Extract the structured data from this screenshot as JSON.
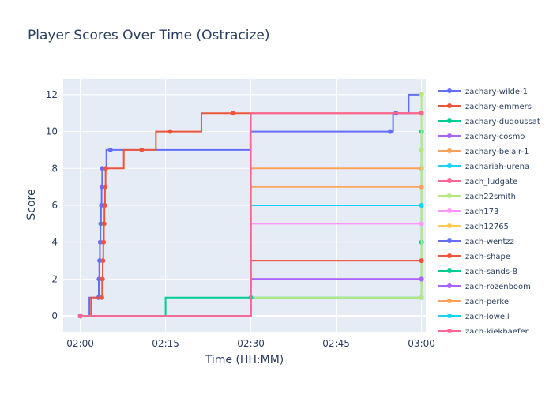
{
  "chart_data": {
    "type": "line",
    "title": "Player Scores Over Time (Ostracize)",
    "xlabel": "Time (HH:MM)",
    "ylabel": "Score",
    "xlim": [
      "01:57:00",
      "03:00:45"
    ],
    "ylim": [
      -0.85,
      12.85
    ],
    "x_ticks": [
      {
        "value": "02:00:00",
        "label": "02:00"
      },
      {
        "value": "02:15:00",
        "label": "02:15"
      },
      {
        "value": "02:30:00",
        "label": "02:30"
      },
      {
        "value": "02:45:00",
        "label": "02:45"
      },
      {
        "value": "03:00:00",
        "label": "03:00"
      }
    ],
    "y_ticks": [
      0,
      2,
      4,
      6,
      8,
      10,
      12
    ],
    "grid": true,
    "legend_position": "right",
    "series": [
      {
        "name": "zachary-wilde-1",
        "color": "#636efa",
        "line_shape": "step",
        "x": [
          "02:00:00",
          "02:00:00",
          "02:00:00",
          "02:03:12",
          "02:03:18",
          "02:03:24",
          "02:03:30",
          "02:03:36",
          "02:03:42",
          "02:03:48",
          "02:03:54",
          "02:05:18",
          "02:54:30",
          "02:55:30",
          "03:00:00"
        ],
        "y": [
          0,
          0,
          0,
          1,
          2,
          3,
          4,
          5,
          6,
          7,
          8,
          9,
          10,
          11,
          12
        ]
      },
      {
        "name": "zachary-emmers",
        "color": "#ef553b",
        "line_shape": "step",
        "x": [
          "02:00:00",
          "02:00:00",
          "02:00:00",
          "02:03:48",
          "02:03:54",
          "02:04:00",
          "02:04:06",
          "02:04:12",
          "02:04:18",
          "02:04:24",
          "02:04:30",
          "02:10:48",
          "02:15:48",
          "02:26:48",
          "03:00:00"
        ],
        "y": [
          0,
          0,
          0,
          1,
          2,
          3,
          4,
          5,
          6,
          7,
          8,
          9,
          10,
          11,
          11
        ]
      },
      {
        "name": "zachary-dudoussat",
        "color": "#00cc96",
        "line_shape": "step",
        "x": [
          "02:00:00",
          "03:00:00",
          "03:00:00",
          "03:00:00"
        ],
        "y": [
          0,
          1,
          4,
          10
        ]
      },
      {
        "name": "zachary-cosmo",
        "color": "#ab63fa",
        "line_shape": "step",
        "x": [
          "02:00:00",
          "03:00:00"
        ],
        "y": [
          0,
          2
        ]
      },
      {
        "name": "zachary-belair-1",
        "color": "#ffa15a",
        "line_shape": "step",
        "x": [
          "02:00:00",
          "03:00:00"
        ],
        "y": [
          0,
          8
        ]
      },
      {
        "name": "zachariah-urena",
        "color": "#19d3f3",
        "line_shape": "step",
        "x": [
          "02:00:00",
          "03:00:00"
        ],
        "y": [
          0,
          6
        ]
      },
      {
        "name": "zach_ludgate",
        "color": "#ff6692",
        "line_shape": "step",
        "x": [
          "02:00:00",
          "03:00:00"
        ],
        "y": [
          0,
          3
        ]
      },
      {
        "name": "zach22smith",
        "color": "#b6e880",
        "line_shape": "step",
        "x": [
          "02:00:00",
          "03:00:00",
          "03:00:00",
          "03:00:00"
        ],
        "y": [
          0,
          1,
          9,
          12
        ]
      },
      {
        "name": "zach173",
        "color": "#ff97ff",
        "line_shape": "step",
        "x": [
          "02:00:00",
          "03:00:00"
        ],
        "y": [
          0,
          5
        ]
      },
      {
        "name": "zach12765",
        "color": "#fecb52",
        "line_shape": "step",
        "x": [
          "02:00:00",
          "03:00:00"
        ],
        "y": [
          0,
          7
        ]
      },
      {
        "name": "zach-wentzz",
        "color": "#636efa",
        "line_shape": "step",
        "x": [
          "02:00:00",
          "03:00:00"
        ],
        "y": [
          0,
          2
        ]
      },
      {
        "name": "zach-shape",
        "color": "#ef553b",
        "line_shape": "step",
        "x": [
          "02:00:00",
          "03:00:00"
        ],
        "y": [
          0,
          3
        ]
      },
      {
        "name": "zach-sands-8",
        "color": "#00cc96",
        "line_shape": "step",
        "x": [
          "02:00:00",
          "02:30:00"
        ],
        "y": [
          0,
          1
        ]
      },
      {
        "name": "zach-rozenboom",
        "color": "#ab63fa",
        "line_shape": "step",
        "x": [
          "02:00:00",
          "03:00:00"
        ],
        "y": [
          0,
          2
        ]
      },
      {
        "name": "zach-perkel",
        "color": "#ffa15a",
        "line_shape": "step",
        "x": [
          "02:00:00",
          "03:00:00"
        ],
        "y": [
          0,
          7
        ]
      },
      {
        "name": "zach-lowell",
        "color": "#19d3f3",
        "line_shape": "step",
        "x": [
          "02:00:00",
          "03:00:00"
        ],
        "y": [
          0,
          6
        ]
      },
      {
        "name": "zach-kiekhaefer",
        "color": "#ff6692",
        "line_shape": "step",
        "x": [
          "02:00:00",
          "03:00:00"
        ],
        "y": [
          0,
          11
        ]
      }
    ]
  }
}
